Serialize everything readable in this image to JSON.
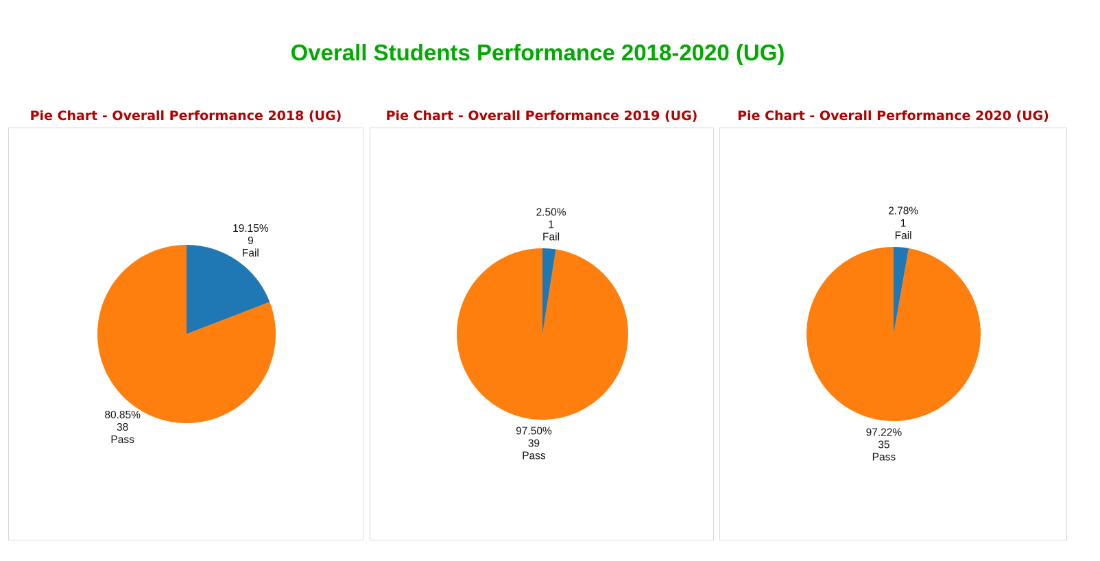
{
  "page": {
    "title": "Overall Students Performance 2018-2020 (UG)"
  },
  "colors": {
    "title": "#00aa00",
    "chart_title": "#b30000",
    "fail": "#1f77b4",
    "pass": "#ff7f0e"
  },
  "chart_data": [
    {
      "type": "pie",
      "title": "Pie Chart - Overall Performance 2018 (UG)",
      "categories": [
        "Fail",
        "Pass"
      ],
      "values": [
        9,
        38
      ],
      "percent_labels": [
        "19.15%",
        "80.85%"
      ],
      "count_labels": [
        "9",
        "38"
      ],
      "colors": [
        "#1f77b4",
        "#ff7f0e"
      ]
    },
    {
      "type": "pie",
      "title": "Pie Chart - Overall Performance 2019 (UG)",
      "categories": [
        "Fail",
        "Pass"
      ],
      "values": [
        1,
        39
      ],
      "percent_labels": [
        "2.50%",
        "97.50%"
      ],
      "count_labels": [
        "1",
        "39"
      ],
      "colors": [
        "#1f77b4",
        "#ff7f0e"
      ]
    },
    {
      "type": "pie",
      "title": "Pie Chart - Overall Performance 2020 (UG)",
      "categories": [
        "Fail",
        "Pass"
      ],
      "values": [
        1,
        35
      ],
      "percent_labels": [
        "2.78%",
        "97.22%"
      ],
      "count_labels": [
        "1",
        "35"
      ],
      "colors": [
        "#1f77b4",
        "#ff7f0e"
      ]
    }
  ]
}
